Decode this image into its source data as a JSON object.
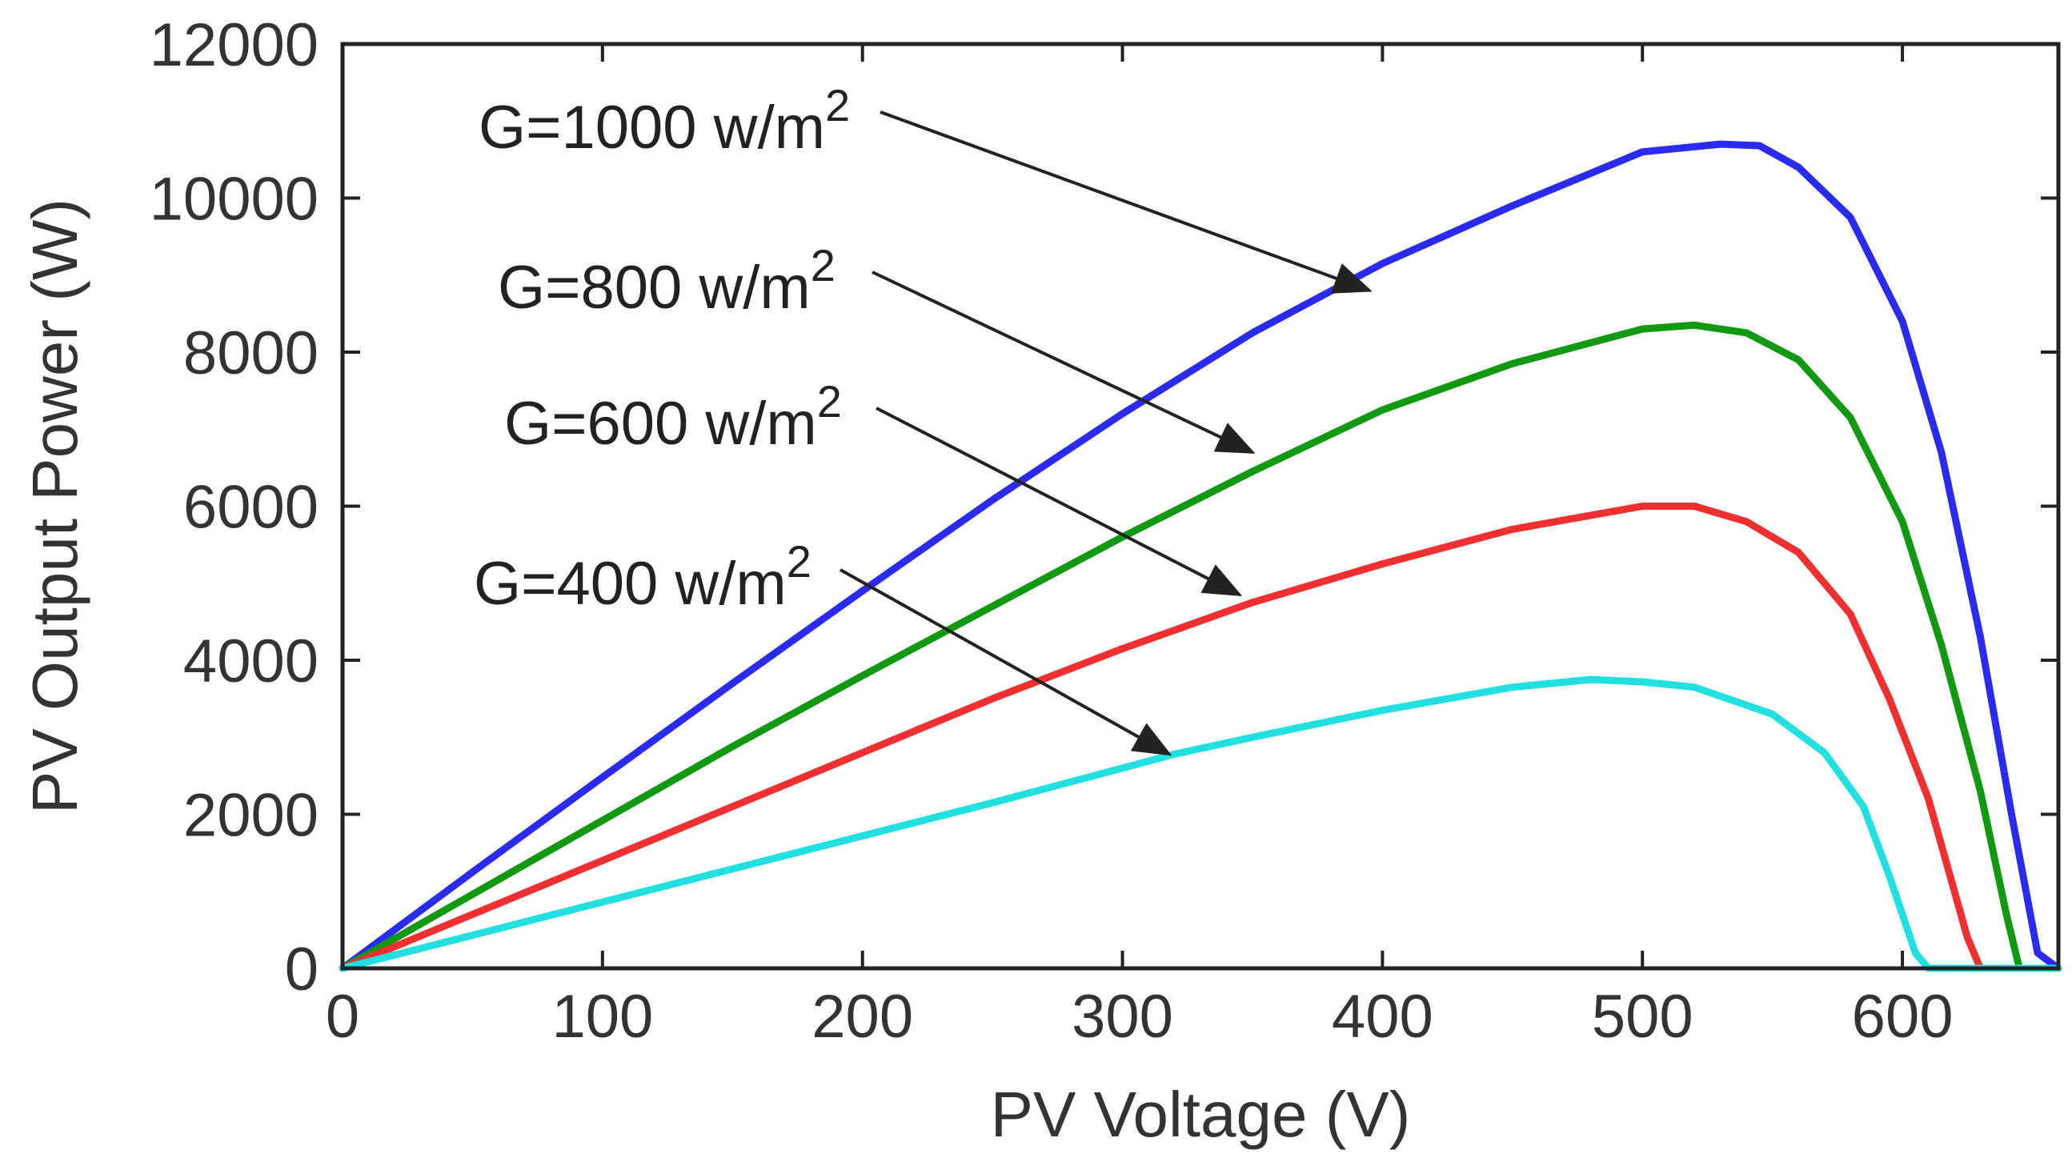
{
  "chart_data": {
    "type": "line",
    "title": "",
    "xlabel": "PV Voltage (V)",
    "ylabel": "PV Output Power (W)",
    "xlim": [
      0,
      660
    ],
    "ylim": [
      0,
      12000
    ],
    "x_ticks": [
      0,
      100,
      200,
      300,
      400,
      500,
      600
    ],
    "x_tick_labels": [
      "0",
      "100",
      "200",
      "300",
      "400",
      "500",
      "600"
    ],
    "y_ticks": [
      0,
      2000,
      4000,
      6000,
      8000,
      10000,
      12000
    ],
    "y_tick_labels": [
      "0",
      "2000",
      "4000",
      "6000",
      "8000",
      "10000",
      "12000"
    ],
    "grid": false,
    "series": [
      {
        "name": "G=1000 w/m2",
        "color": "#2b2bf0",
        "points": [
          [
            0,
            0
          ],
          [
            50,
            1250
          ],
          [
            100,
            2480
          ],
          [
            150,
            3700
          ],
          [
            200,
            4900
          ],
          [
            250,
            6080
          ],
          [
            300,
            7200
          ],
          [
            350,
            8250
          ],
          [
            400,
            9150
          ],
          [
            450,
            9900
          ],
          [
            500,
            10600
          ],
          [
            530,
            10700
          ],
          [
            545,
            10680
          ],
          [
            560,
            10400
          ],
          [
            580,
            9750
          ],
          [
            600,
            8400
          ],
          [
            615,
            6700
          ],
          [
            630,
            4300
          ],
          [
            642,
            2000
          ],
          [
            652,
            200
          ],
          [
            660,
            0
          ]
        ]
      },
      {
        "name": "G=800 w/m2",
        "color": "#119911",
        "points": [
          [
            0,
            0
          ],
          [
            50,
            960
          ],
          [
            100,
            1920
          ],
          [
            150,
            2880
          ],
          [
            200,
            3800
          ],
          [
            250,
            4700
          ],
          [
            300,
            5600
          ],
          [
            350,
            6450
          ],
          [
            400,
            7250
          ],
          [
            450,
            7850
          ],
          [
            500,
            8300
          ],
          [
            520,
            8350
          ],
          [
            540,
            8250
          ],
          [
            560,
            7900
          ],
          [
            580,
            7150
          ],
          [
            600,
            5800
          ],
          [
            615,
            4200
          ],
          [
            630,
            2300
          ],
          [
            640,
            700
          ],
          [
            645,
            0
          ],
          [
            660,
            0
          ]
        ]
      },
      {
        "name": "G=600 w/m2",
        "color": "#f03030",
        "points": [
          [
            0,
            0
          ],
          [
            50,
            700
          ],
          [
            100,
            1400
          ],
          [
            150,
            2100
          ],
          [
            200,
            2800
          ],
          [
            250,
            3500
          ],
          [
            300,
            4150
          ],
          [
            350,
            4750
          ],
          [
            400,
            5250
          ],
          [
            450,
            5700
          ],
          [
            500,
            6000
          ],
          [
            520,
            6000
          ],
          [
            540,
            5800
          ],
          [
            560,
            5400
          ],
          [
            580,
            4600
          ],
          [
            595,
            3500
          ],
          [
            610,
            2200
          ],
          [
            620,
            1000
          ],
          [
            625,
            400
          ],
          [
            630,
            0
          ],
          [
            660,
            0
          ]
        ]
      },
      {
        "name": "G=400 w/m2",
        "color": "#22e0e0",
        "points": [
          [
            0,
            0
          ],
          [
            50,
            430
          ],
          [
            100,
            860
          ],
          [
            150,
            1290
          ],
          [
            200,
            1720
          ],
          [
            250,
            2150
          ],
          [
            300,
            2600
          ],
          [
            320,
            2780
          ],
          [
            350,
            3000
          ],
          [
            400,
            3350
          ],
          [
            450,
            3650
          ],
          [
            480,
            3750
          ],
          [
            500,
            3720
          ],
          [
            520,
            3650
          ],
          [
            550,
            3300
          ],
          [
            570,
            2800
          ],
          [
            585,
            2100
          ],
          [
            595,
            1200
          ],
          [
            605,
            200
          ],
          [
            610,
            0
          ],
          [
            660,
            0
          ]
        ]
      }
    ],
    "annotations": [
      {
        "text": "G=1000 w/m",
        "sup": "2",
        "arrow_to": [
          395,
          8800
        ]
      },
      {
        "text": "G=800 w/m",
        "sup": "2",
        "arrow_to": [
          350,
          6700
        ]
      },
      {
        "text": "G=600 w/m",
        "sup": "2",
        "arrow_to": [
          345,
          4850
        ]
      },
      {
        "text": "G=400 w/m",
        "sup": "2",
        "arrow_to": [
          318,
          2780
        ]
      }
    ]
  }
}
